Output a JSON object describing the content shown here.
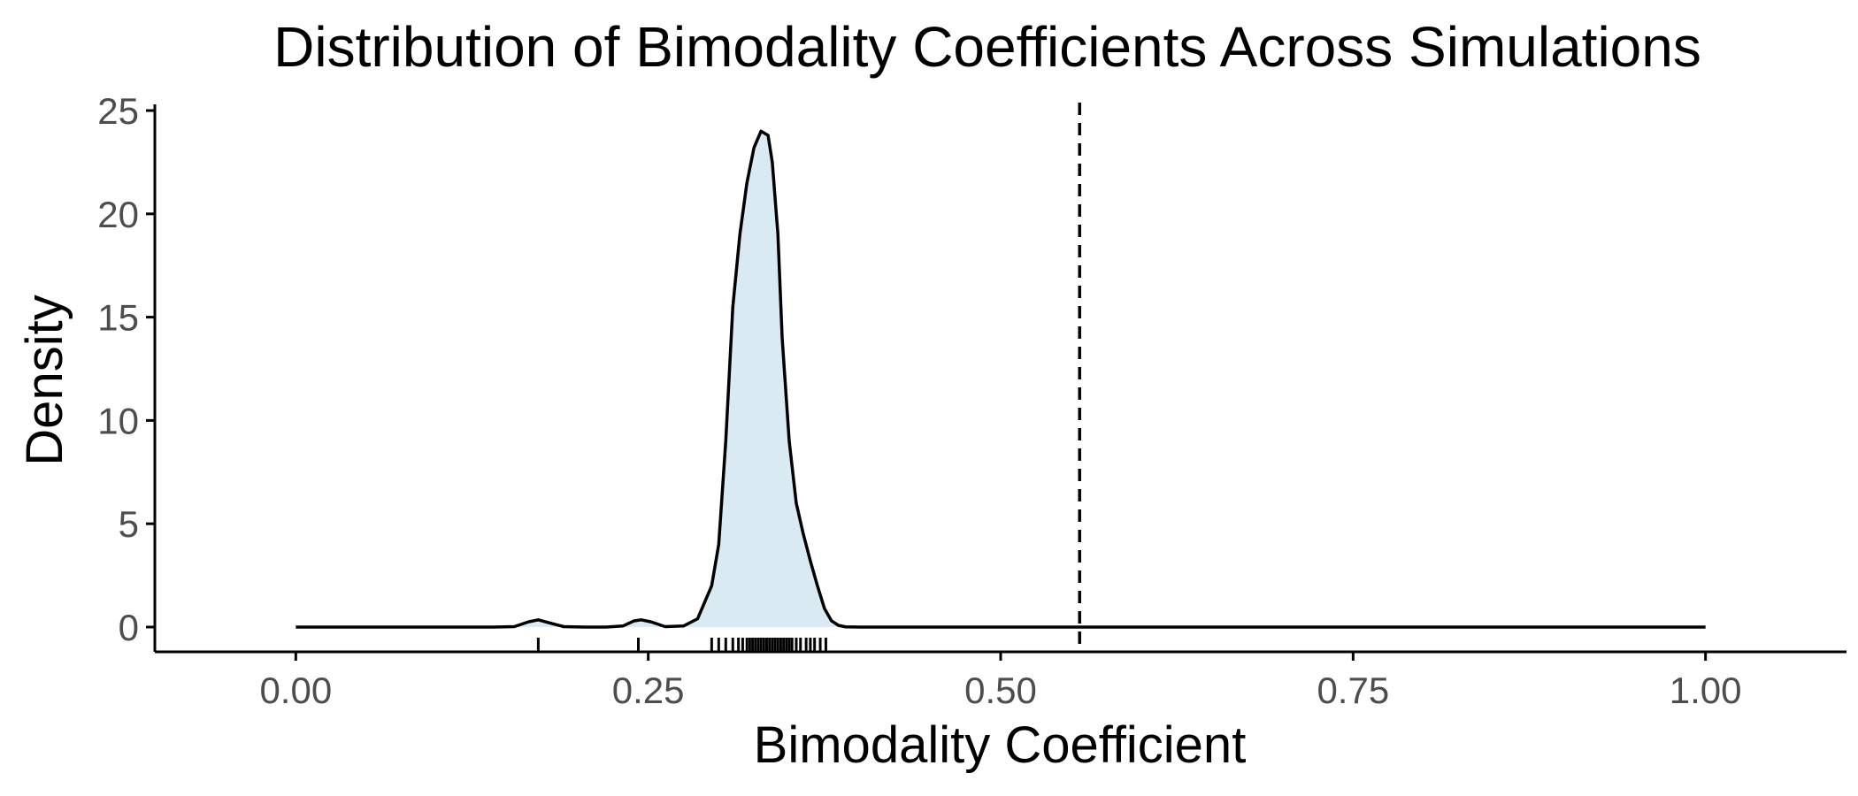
{
  "chart_data": {
    "type": "area",
    "title": "Distribution of Bimodality Coefficients Across Simulations",
    "xlabel": "Bimodality Coefficient",
    "ylabel": "Density",
    "xlim": [
      -0.1,
      1.1
    ],
    "ylim": [
      -1.2,
      25.3
    ],
    "x_ticks": [
      0.0,
      0.25,
      0.5,
      0.75,
      1.0
    ],
    "x_tick_labels": [
      "0.00",
      "0.25",
      "0.50",
      "0.75",
      "1.00"
    ],
    "y_ticks": [
      0,
      5,
      10,
      15,
      20,
      25
    ],
    "y_tick_labels": [
      "0",
      "5",
      "10",
      "15",
      "20",
      "25"
    ],
    "grid": false,
    "series": [
      {
        "x": [
          0.0,
          0.14,
          0.155,
          0.165,
          0.172,
          0.18,
          0.19,
          0.205,
          0.22,
          0.232,
          0.24,
          0.245,
          0.252,
          0.262,
          0.275,
          0.285,
          0.29,
          0.295,
          0.3,
          0.305,
          0.31,
          0.315,
          0.32,
          0.325,
          0.33,
          0.335,
          0.338,
          0.342,
          0.345,
          0.35,
          0.355,
          0.36,
          0.365,
          0.37,
          0.375,
          0.38,
          0.385,
          0.39,
          0.4,
          0.42,
          0.5,
          0.75,
          1.0
        ],
        "y": [
          0.0,
          0.0,
          0.02,
          0.25,
          0.35,
          0.2,
          0.02,
          0.0,
          0.0,
          0.05,
          0.3,
          0.35,
          0.25,
          0.02,
          0.05,
          0.4,
          1.2,
          2.0,
          4.0,
          9.0,
          15.5,
          19.0,
          21.5,
          23.2,
          24.0,
          23.8,
          22.5,
          19.0,
          14.0,
          9.0,
          6.0,
          4.5,
          3.2,
          2.0,
          0.9,
          0.3,
          0.08,
          0.01,
          0.0,
          0.0,
          0.0,
          0.0,
          0.0
        ],
        "fill": "#d9eaf2",
        "line": "#000000"
      }
    ],
    "reference_line": {
      "x": 0.556,
      "style": "dashed"
    },
    "rug": [
      0.172,
      0.243,
      0.295,
      0.3,
      0.305,
      0.31,
      0.314,
      0.317,
      0.32,
      0.322,
      0.324,
      0.326,
      0.328,
      0.33,
      0.332,
      0.334,
      0.336,
      0.338,
      0.34,
      0.342,
      0.344,
      0.346,
      0.348,
      0.35,
      0.352,
      0.355,
      0.358,
      0.362,
      0.365,
      0.368,
      0.372,
      0.376
    ]
  }
}
